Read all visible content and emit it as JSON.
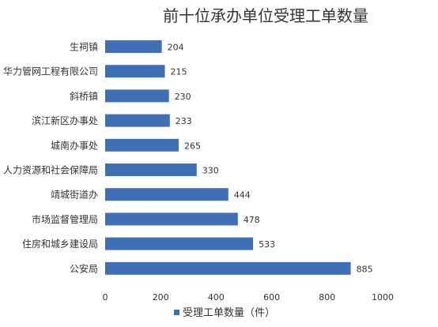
{
  "chart_data": {
    "type": "bar",
    "orientation": "horizontal",
    "title": "前十位承办单位受理工单数量",
    "categories": [
      "生祠镇",
      "华力管网工程有限公司",
      "斜桥镇",
      "滨江新区办事处",
      "城南办事处",
      "人力资源和社会保障局",
      "靖城街道办",
      "市场监督管理局",
      "住房和城乡建设局",
      "公安局"
    ],
    "series": [
      {
        "name": "受理工单数量（件）",
        "values": [
          204,
          215,
          230,
          233,
          265,
          330,
          444,
          478,
          533,
          885
        ]
      }
    ],
    "xlim": [
      0,
      1000
    ],
    "xticks": [
      0,
      200,
      400,
      600,
      800,
      1000
    ],
    "xlabel": "",
    "ylabel": "",
    "grid": false,
    "legend_position": "bottom",
    "data_labels": true,
    "bar_color": "#3F6FB5"
  }
}
